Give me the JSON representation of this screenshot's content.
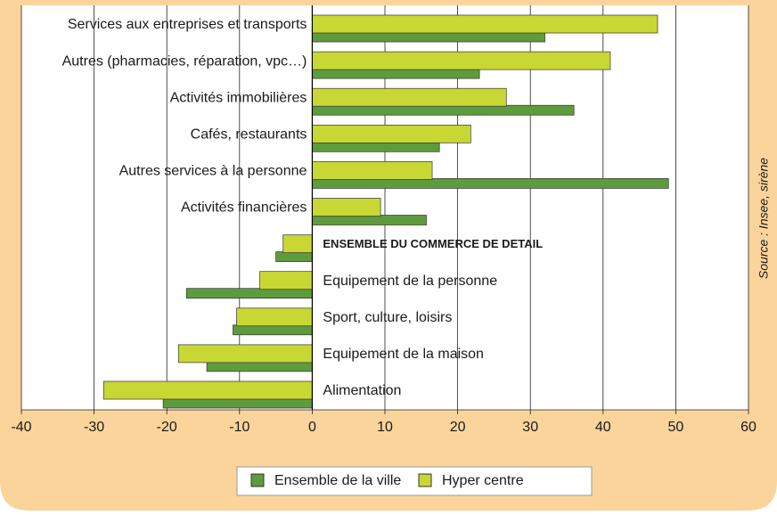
{
  "chart_data": {
    "type": "bar",
    "orientation": "horizontal",
    "categories": [
      "Services aux entreprises et transports",
      "Autres (pharmacies, réparation, vpc…)",
      "Activités immobilières",
      "Cafés, restaurants",
      "Autres services à la personne",
      "Activités financières",
      "ENSEMBLE DU COMMERCE DE DETAIL",
      "Equipement de la personne",
      "Sport, culture, loisirs",
      "Equipement de la maison",
      "Alimentation"
    ],
    "series": [
      {
        "name": "Ensemble de la ville",
        "color": "#5e9b3d",
        "values": [
          32,
          23,
          36,
          17.5,
          49,
          15.7,
          -5,
          -17.3,
          -10.9,
          -14.5,
          -20.5
        ]
      },
      {
        "name": "Hyper centre",
        "color": "#c9d734",
        "values": [
          47.5,
          41,
          26.7,
          21.8,
          16.5,
          9.4,
          -4,
          -7.2,
          -10.4,
          -18.4,
          -28.7
        ]
      }
    ],
    "xlim": [
      -40,
      60
    ],
    "xticks": [
      -40,
      -30,
      -20,
      -10,
      0,
      10,
      20,
      30,
      40,
      50,
      60
    ],
    "grid": true,
    "legend": "bottom",
    "source": "Source : Insee, sirène"
  }
}
